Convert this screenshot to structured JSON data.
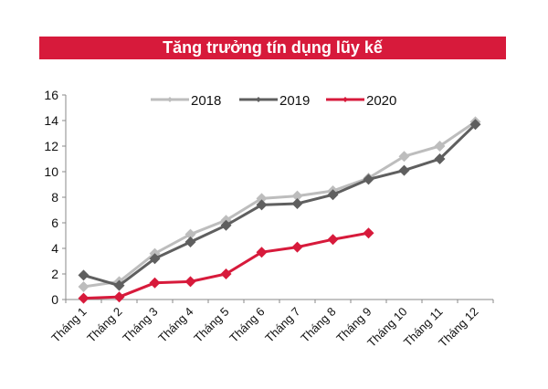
{
  "title": "Tăng trưởng tín dụng lũy kế",
  "legend": [
    {
      "label": "2018",
      "color": "#bdbdbd"
    },
    {
      "label": "2019",
      "color": "#5f5f5f"
    },
    {
      "label": "2020",
      "color": "#d71a3b"
    }
  ],
  "y_ticks": [
    "0",
    "2",
    "4",
    "6",
    "8",
    "10",
    "12",
    "14",
    "16"
  ],
  "x_ticks": [
    "Tháng 1",
    "Tháng 2",
    "Tháng 3",
    "Tháng 4",
    "Tháng 5",
    "Tháng 6",
    "Tháng 7",
    "Tháng 8",
    "Tháng 9",
    "Tháng 10",
    "Tháng 11",
    "Tháng 12"
  ],
  "chart_data": {
    "type": "line",
    "title": "Tăng trưởng tín dụng lũy kế",
    "xlabel": "",
    "ylabel": "",
    "ylim": [
      0,
      16
    ],
    "grid": false,
    "legend_position": "top",
    "categories": [
      "Tháng 1",
      "Tháng 2",
      "Tháng 3",
      "Tháng 4",
      "Tháng 5",
      "Tháng 6",
      "Tháng 7",
      "Tháng 8",
      "Tháng 9",
      "Tháng 10",
      "Tháng 11",
      "Tháng 12"
    ],
    "series": [
      {
        "name": "2018",
        "color": "#bdbdbd",
        "values": [
          1.0,
          1.4,
          3.6,
          5.1,
          6.2,
          7.9,
          8.1,
          8.5,
          9.5,
          11.2,
          12.0,
          13.9
        ]
      },
      {
        "name": "2019",
        "color": "#5f5f5f",
        "values": [
          1.9,
          1.1,
          3.2,
          4.5,
          5.8,
          7.4,
          7.5,
          8.2,
          9.4,
          10.1,
          11.0,
          13.7
        ]
      },
      {
        "name": "2020",
        "color": "#d71a3b",
        "values": [
          0.1,
          0.2,
          1.3,
          1.4,
          2.0,
          3.7,
          4.1,
          4.7,
          5.2
        ]
      }
    ]
  }
}
